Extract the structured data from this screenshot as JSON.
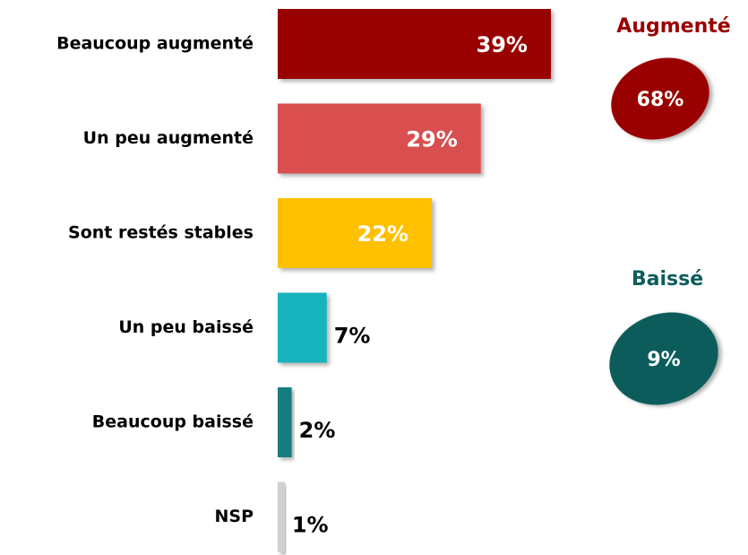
{
  "chart_data": {
    "type": "bar",
    "orientation": "horizontal",
    "categories": [
      "Beaucoup augmenté",
      "Un peu augmenté",
      "Sont restés stables",
      "Un peu baissé",
      "Beaucoup baissé",
      "NSP"
    ],
    "values": [
      39,
      29,
      22,
      7,
      2,
      1
    ],
    "value_labels": [
      "39%",
      "29%",
      "22%",
      "7%",
      "2%",
      "1%"
    ],
    "colors": [
      "#990000",
      "#d94f4f",
      "#ffc000",
      "#17b3bd",
      "#177d80",
      "#d0d0d0"
    ],
    "summaries": [
      {
        "label": "Augmenté",
        "value": 68,
        "value_label": "68%",
        "color": "#990000"
      },
      {
        "label": "Baissé",
        "value": 9,
        "value_label": "9%",
        "color": "#0f5c5c"
      }
    ]
  }
}
